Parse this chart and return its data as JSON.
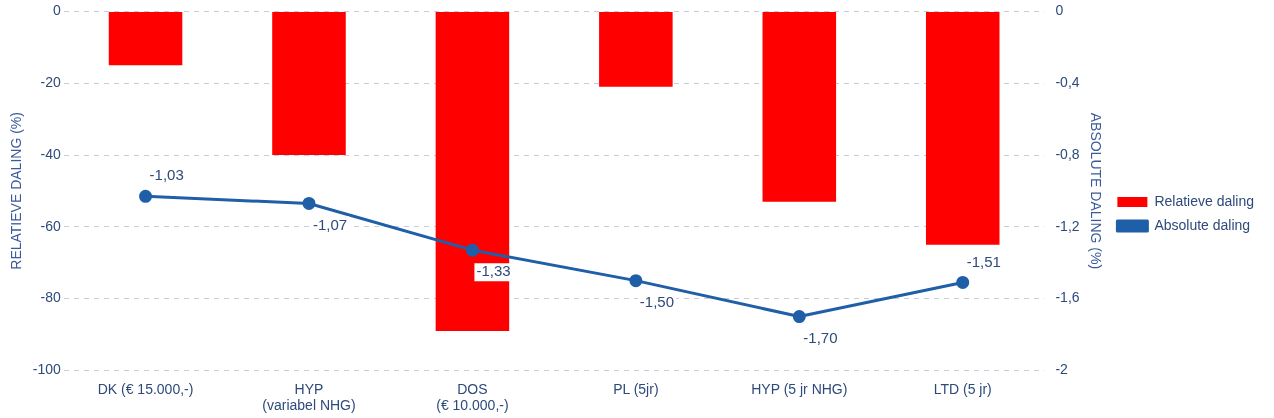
{
  "chart_data": {
    "type": "bar",
    "categories": [
      "DK (€ 15.000,-)",
      "HYP\n(variabel NHG)",
      "DOS\n(€ 10.000,-)",
      "PL (5jr)",
      "HYP (5 jr NHG)",
      "LTD (5 jr)"
    ],
    "ylabel": "RELATIEVE DALING (%)",
    "y2label": "ABSOLUTE DALING (%)",
    "ylim": [
      -100,
      0
    ],
    "yticks": [
      0,
      -20,
      -40,
      -60,
      -80,
      -100
    ],
    "y2lim": [
      -2,
      0
    ],
    "y2ticks": [
      {
        "value": 0,
        "label": "0"
      },
      {
        "value": -0.4,
        "label": "-0,4"
      },
      {
        "value": -0.8,
        "label": "-0,8"
      },
      {
        "value": -1.2,
        "label": "-1,2"
      },
      {
        "value": -1.6,
        "label": "-1,6"
      },
      {
        "value": -2,
        "label": "-2"
      }
    ],
    "series": [
      {
        "name": "Relatieve daling",
        "color": "#ff0000",
        "values": [
          -15,
          -40,
          -89,
          -21,
          -53,
          -65
        ]
      },
      {
        "name": "Absolute daling",
        "type": "line",
        "axis": "y2",
        "color": "#1f5fa8",
        "values": [
          -1.03,
          -1.07,
          -1.33,
          -1.5,
          -1.7,
          -1.51
        ],
        "value_labels": [
          "-1,03",
          "-1,07",
          "-1,33",
          "-1,50",
          "-1,70",
          "-1,51"
        ]
      }
    ],
    "grid": "y",
    "legend": "right",
    "marker": "circle",
    "line_style": "solid"
  }
}
